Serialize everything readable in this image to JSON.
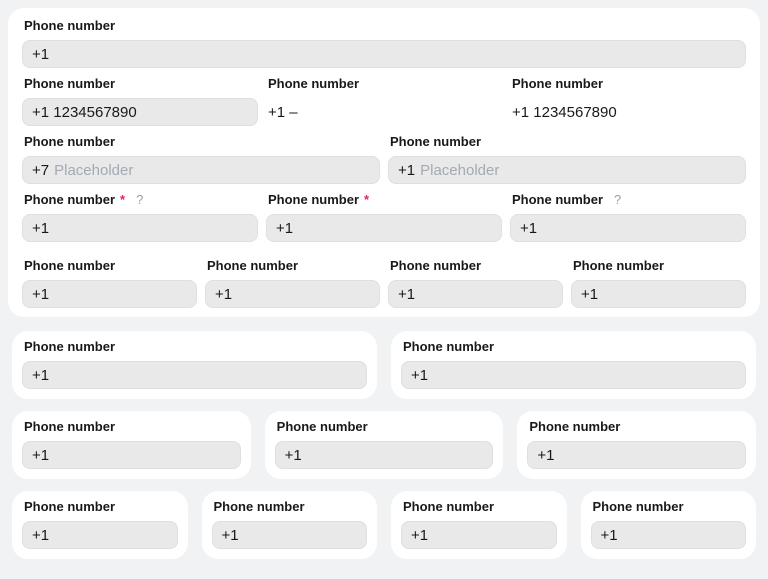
{
  "field_label": "Phone number",
  "required_marker": "*",
  "help_glyph": "?",
  "colors": {
    "page_bg": "#f1f2f4",
    "card_bg": "#ffffff",
    "input_bg": "#e9e9ea",
    "input_border": "#dedfe2",
    "text": "#17191c",
    "placeholder": "#a4aab4",
    "required": "#ef2158",
    "help": "#9aa0a6"
  },
  "main_card": {
    "row1": {
      "value": "+1"
    },
    "row2": {
      "input_value": "+1 1234567890",
      "plain_short": "+1 –",
      "plain_full": "+1 1234567890"
    },
    "row3": {
      "left": {
        "prefix": "+7",
        "placeholder": "Placeholder"
      },
      "right": {
        "prefix": "+1",
        "placeholder": "Placeholder"
      }
    },
    "row4": {
      "first": "+1",
      "second": "+1",
      "third": "+1"
    },
    "row5": {
      "a": "+1",
      "b": "+1",
      "c": "+1",
      "d": "+1"
    }
  },
  "two_cards": {
    "a": "+1",
    "b": "+1"
  },
  "three_cards": {
    "a": "+1",
    "b": "+1",
    "c": "+1"
  },
  "four_cards": {
    "a": "+1",
    "b": "+1",
    "c": "+1",
    "d": "+1"
  }
}
